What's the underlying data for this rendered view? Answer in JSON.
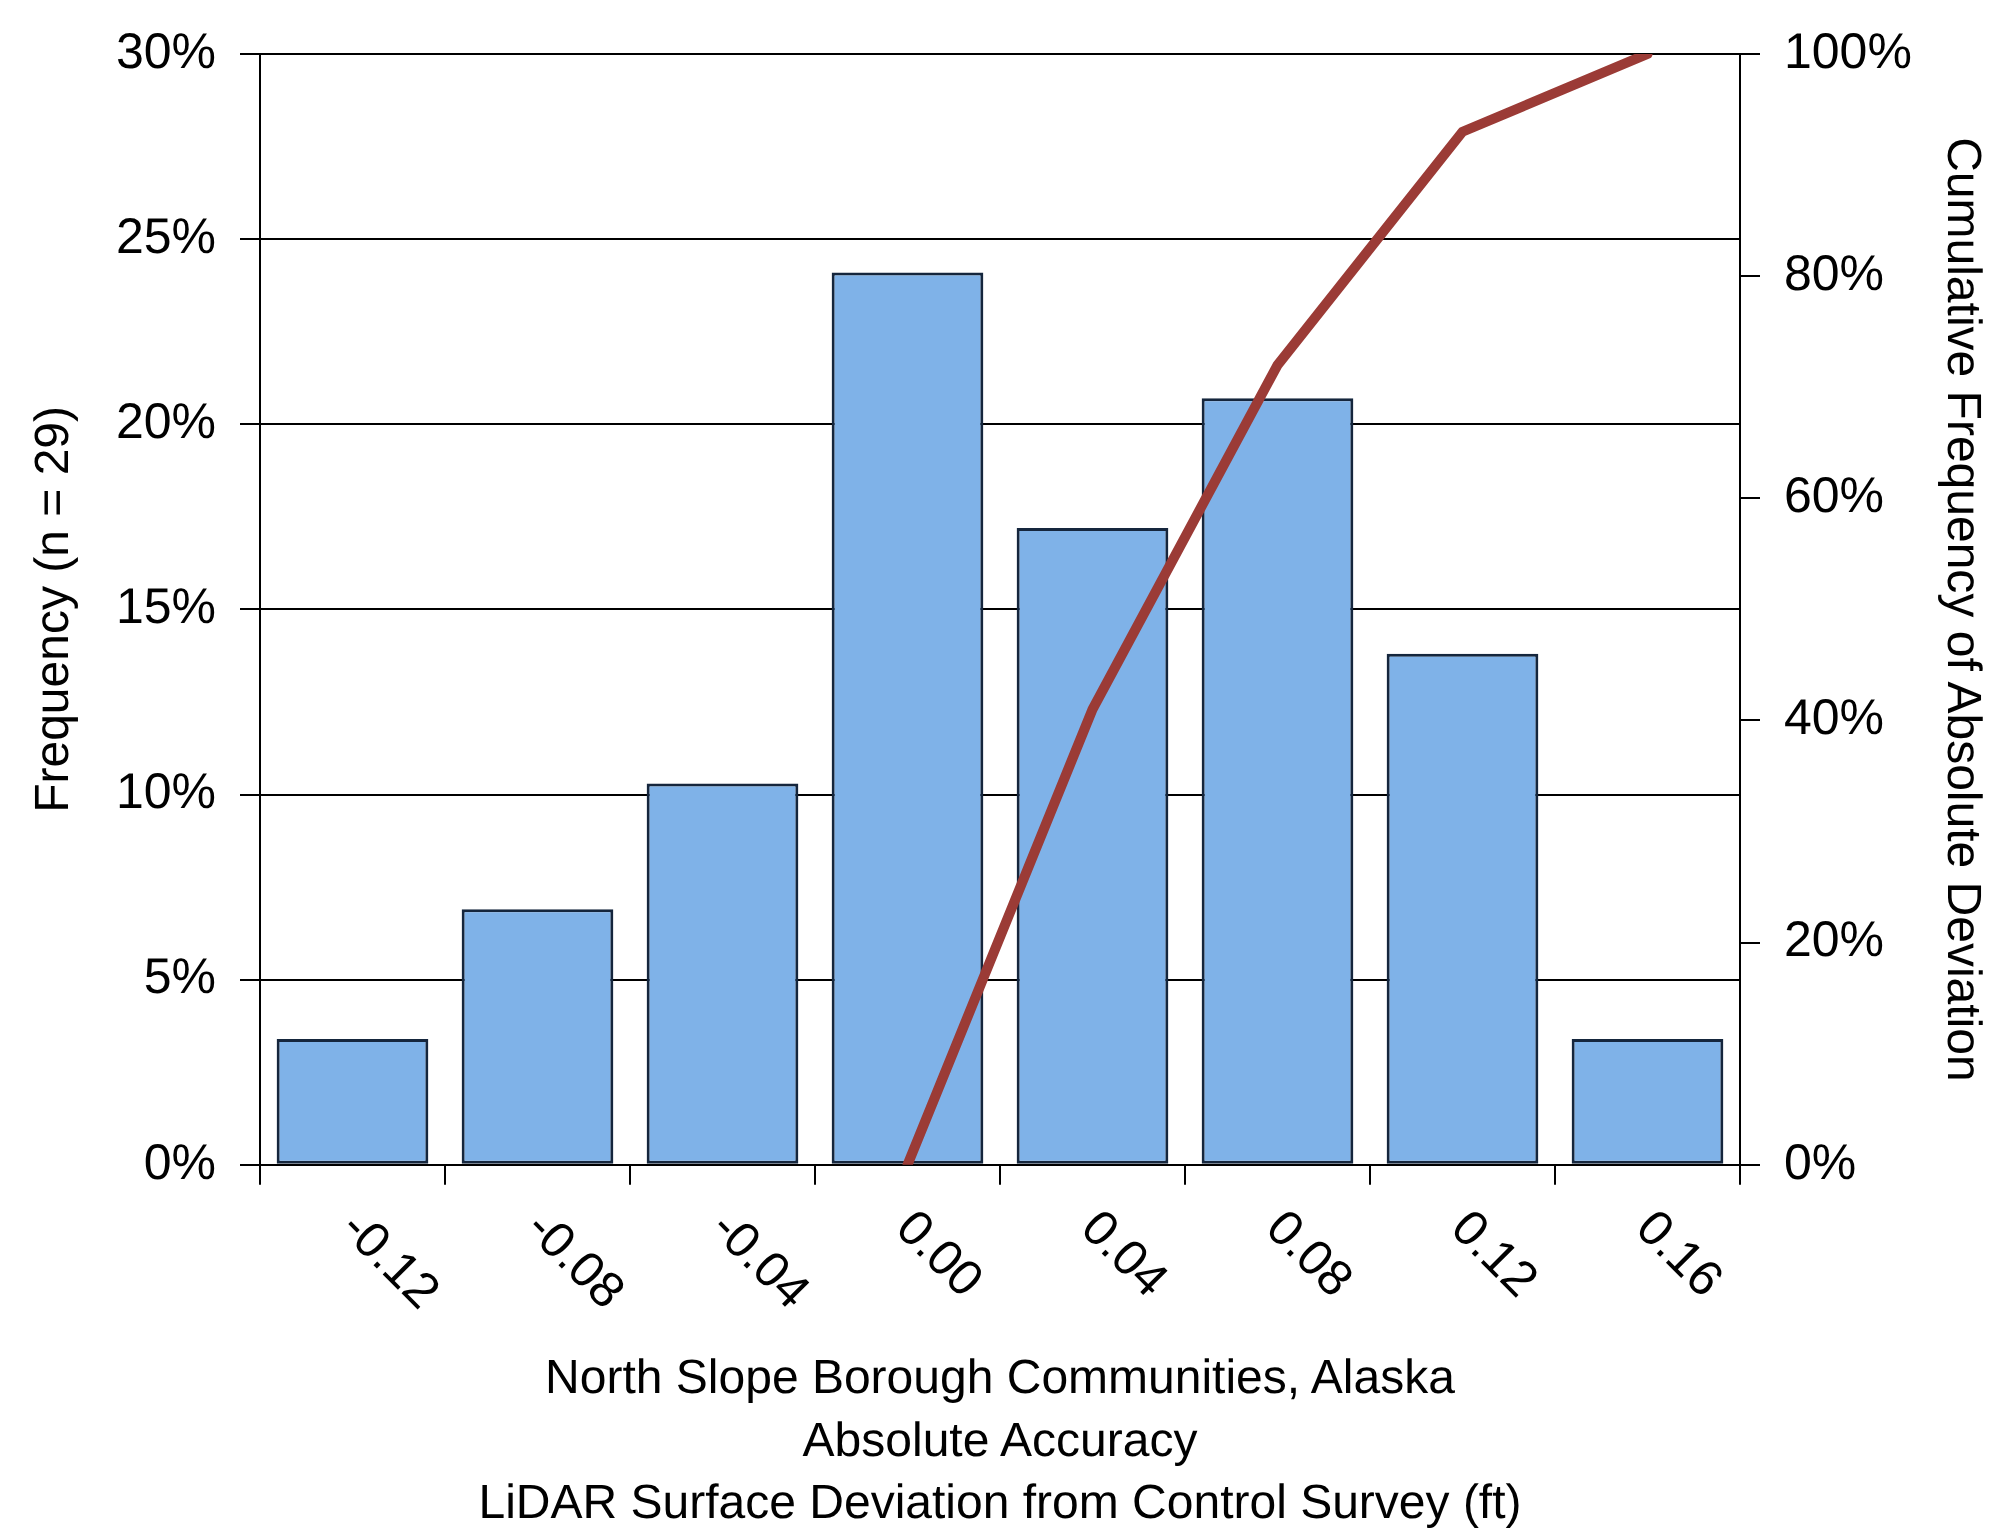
{
  "chart_data": {
    "type": "bar",
    "categories": [
      "-0.12",
      "-0.08",
      "-0.04",
      "0.00",
      "0.04",
      "0.08",
      "0.12",
      "0.16"
    ],
    "series": [
      {
        "color": "#7fb2e8",
        "values": [
          3.4,
          6.9,
          10.3,
          24.1,
          17.2,
          20.7,
          13.8,
          3.4
        ]
      },
      {
        "type": "line",
        "axis": "y2",
        "color": "#9b3b36",
        "values": [
          null,
          null,
          null,
          0,
          41,
          72,
          93,
          100
        ]
      }
    ],
    "xlabel": "North Slope Borough Communities, Alaska\nAbsolute Accuracy\nLiDAR Surface Deviation from Control Survey (ft)",
    "ylabel": "Frequency (n = 29)",
    "y2label": "Cumulative Frequency of Absolute Deviation",
    "ylim": [
      0,
      30
    ],
    "yticks": [
      {
        "value": 0,
        "label": "0%"
      },
      {
        "value": 5,
        "label": "5%"
      },
      {
        "value": 10,
        "label": "10%"
      },
      {
        "value": 15,
        "label": "15%"
      },
      {
        "value": 20,
        "label": "20%"
      },
      {
        "value": 25,
        "label": "25%"
      },
      {
        "value": 30,
        "label": "30%"
      }
    ],
    "y2lim": [
      0,
      100
    ],
    "y2ticks": [
      {
        "value": 0,
        "label": "0%"
      },
      {
        "value": 20,
        "label": "20%"
      },
      {
        "value": 40,
        "label": "40%"
      },
      {
        "value": 60,
        "label": "60%"
      },
      {
        "value": 80,
        "label": "80%"
      },
      {
        "value": 100,
        "label": "100%"
      }
    ],
    "grid": "y",
    "marker": "none",
    "line_style": "solid"
  }
}
